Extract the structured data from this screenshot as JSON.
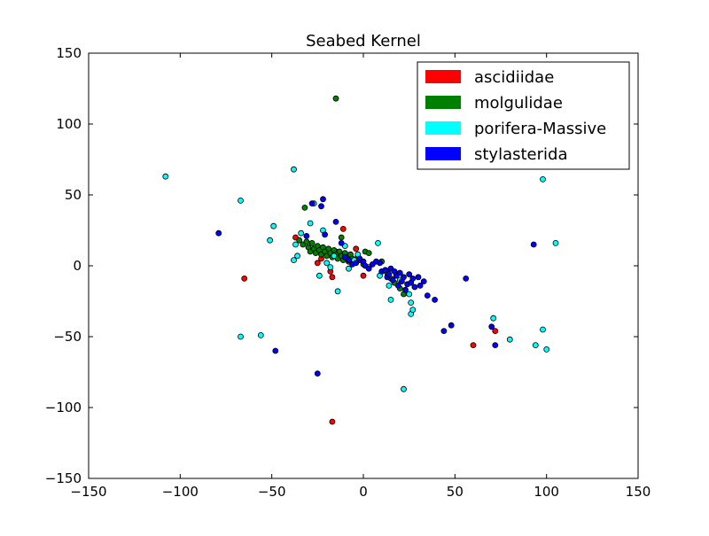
{
  "chart_data": {
    "type": "scatter",
    "title": "Seabed Kernel",
    "xlabel": "",
    "ylabel": "",
    "xlim": [
      -150,
      150
    ],
    "ylim": [
      -150,
      150
    ],
    "xticks": [
      -150,
      -100,
      -50,
      0,
      50,
      100,
      150
    ],
    "yticks": [
      -150,
      -100,
      -50,
      0,
      50,
      100,
      150
    ],
    "grid": false,
    "legend_position": "top-right",
    "series": [
      {
        "name": "ascidiidae",
        "color": "#ff0000",
        "points": [
          [
            -65,
            -9
          ],
          [
            -37,
            20
          ],
          [
            -25,
            2
          ],
          [
            -23,
            5
          ],
          [
            -18,
            -4
          ],
          [
            -17,
            -8
          ],
          [
            -15,
            10
          ],
          [
            -11,
            26
          ],
          [
            -8,
            3
          ],
          [
            -4,
            12
          ],
          [
            0,
            -7
          ],
          [
            60,
            -56
          ],
          [
            72,
            -46
          ],
          [
            -17,
            -110
          ]
        ]
      },
      {
        "name": "molgulidae",
        "color": "#008000",
        "points": [
          [
            -15,
            118
          ],
          [
            -32,
            41
          ],
          [
            -35,
            18
          ],
          [
            -33,
            15
          ],
          [
            -31,
            17
          ],
          [
            -30,
            13
          ],
          [
            -29,
            10
          ],
          [
            -28,
            16
          ],
          [
            -27,
            12
          ],
          [
            -26,
            9
          ],
          [
            -25,
            14
          ],
          [
            -24,
            11
          ],
          [
            -23,
            8
          ],
          [
            -22,
            13
          ],
          [
            -21,
            10
          ],
          [
            -20,
            7
          ],
          [
            -19,
            12
          ],
          [
            -18,
            9
          ],
          [
            -17,
            6
          ],
          [
            -16,
            11
          ],
          [
            -15,
            8
          ],
          [
            -14,
            5
          ],
          [
            -13,
            10
          ],
          [
            -12,
            20
          ],
          [
            -12,
            7
          ],
          [
            -11,
            4
          ],
          [
            -10,
            9
          ],
          [
            -9,
            6
          ],
          [
            -8,
            3
          ],
          [
            -7,
            8
          ],
          [
            -6,
            5
          ],
          [
            -5,
            2
          ],
          [
            -3,
            7
          ],
          [
            -2,
            4
          ],
          [
            0,
            1
          ],
          [
            1,
            10
          ],
          [
            3,
            9
          ],
          [
            10,
            3
          ],
          [
            13,
            -5
          ],
          [
            15,
            -9
          ],
          [
            17,
            -12
          ],
          [
            20,
            -16
          ],
          [
            22,
            -20
          ]
        ]
      },
      {
        "name": "porifera-Massive",
        "color": "#00ffff",
        "points": [
          [
            -108,
            63
          ],
          [
            -67,
            46
          ],
          [
            -38,
            68
          ],
          [
            -49,
            28
          ],
          [
            -51,
            18
          ],
          [
            -37,
            15
          ],
          [
            -38,
            4
          ],
          [
            -36,
            7
          ],
          [
            -34,
            23
          ],
          [
            -29,
            30
          ],
          [
            -27,
            44
          ],
          [
            -22,
            25
          ],
          [
            -24,
            -7
          ],
          [
            -14,
            -18
          ],
          [
            -20,
            2
          ],
          [
            -18,
            -1
          ],
          [
            -16,
            7
          ],
          [
            -10,
            14
          ],
          [
            -8,
            -2
          ],
          [
            -5,
            4
          ],
          [
            -3,
            8
          ],
          [
            3,
            -1
          ],
          [
            8,
            16
          ],
          [
            9,
            -7
          ],
          [
            14,
            -14
          ],
          [
            15,
            -24
          ],
          [
            20,
            -10
          ],
          [
            25,
            -20
          ],
          [
            26,
            -26
          ],
          [
            26,
            -34
          ],
          [
            27,
            -31
          ],
          [
            22,
            -87
          ],
          [
            -67,
            -50
          ],
          [
            -56,
            -49
          ],
          [
            71,
            -37
          ],
          [
            80,
            -52
          ],
          [
            94,
            -56
          ],
          [
            98,
            -45
          ],
          [
            100,
            -59
          ],
          [
            98,
            61
          ],
          [
            105,
            16
          ]
        ]
      },
      {
        "name": "stylasterida",
        "color": "#0000ff",
        "points": [
          [
            -79,
            23
          ],
          [
            -48,
            -60
          ],
          [
            -25,
            -76
          ],
          [
            -23,
            42
          ],
          [
            -22,
            47
          ],
          [
            -21,
            22
          ],
          [
            -28,
            44
          ],
          [
            -31,
            21
          ],
          [
            -15,
            31
          ],
          [
            -12,
            16
          ],
          [
            -10,
            6
          ],
          [
            -8,
            4
          ],
          [
            -6,
            1
          ],
          [
            -4,
            2
          ],
          [
            -2,
            5
          ],
          [
            0,
            3
          ],
          [
            1,
            0
          ],
          [
            3,
            -2
          ],
          [
            5,
            1
          ],
          [
            7,
            3
          ],
          [
            9,
            2
          ],
          [
            10,
            -4
          ],
          [
            12,
            -3
          ],
          [
            13,
            -8
          ],
          [
            14,
            -6
          ],
          [
            15,
            -2
          ],
          [
            16,
            -10
          ],
          [
            17,
            -4
          ],
          [
            18,
            -7
          ],
          [
            19,
            -14
          ],
          [
            20,
            -5
          ],
          [
            21,
            -11
          ],
          [
            22,
            -8
          ],
          [
            23,
            -17
          ],
          [
            24,
            -13
          ],
          [
            25,
            -6
          ],
          [
            26,
            -12
          ],
          [
            27,
            -9
          ],
          [
            28,
            -15
          ],
          [
            30,
            -8
          ],
          [
            31,
            -14
          ],
          [
            33,
            -11
          ],
          [
            35,
            -21
          ],
          [
            39,
            -24
          ],
          [
            44,
            -46
          ],
          [
            48,
            -42
          ],
          [
            56,
            -9
          ],
          [
            70,
            -43
          ],
          [
            72,
            -56
          ],
          [
            93,
            15
          ]
        ]
      }
    ]
  }
}
